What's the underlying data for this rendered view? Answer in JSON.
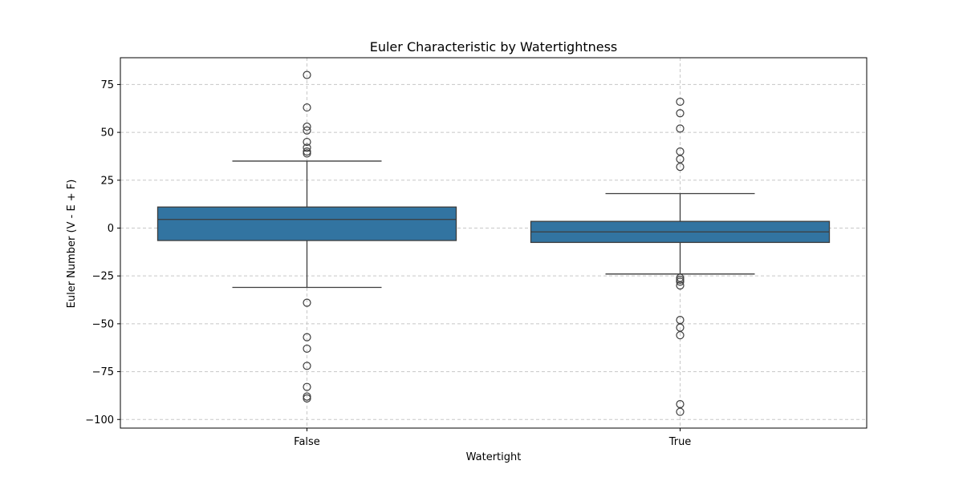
{
  "chart_data": {
    "type": "box",
    "title": "Euler Characteristic by Watertightness",
    "xlabel": "Watertight",
    "ylabel": "Euler Number (V - E + F)",
    "categories": [
      "False",
      "True"
    ],
    "ylim": [
      -104.5,
      89
    ],
    "yticks": [
      75,
      50,
      25,
      0,
      -25,
      -50,
      -75,
      -100
    ],
    "ytick_labels": [
      "75",
      "50",
      "25",
      "0",
      "−25",
      "−50",
      "−75",
      "−100"
    ],
    "grid": true,
    "box_color": "#3274a1",
    "line_color": "#3d3d3d",
    "boxes": [
      {
        "category": "False",
        "whisker_low": -31,
        "q1": -6.5,
        "median": 4.5,
        "q3": 11,
        "whisker_high": 35,
        "outliers": [
          80,
          63,
          53,
          51,
          45,
          42,
          40,
          39,
          -39,
          -57,
          -63,
          -72,
          -83,
          -88,
          -89
        ]
      },
      {
        "category": "True",
        "whisker_low": -24,
        "q1": -7.5,
        "median": -2,
        "q3": 3.5,
        "whisker_high": 18,
        "outliers": [
          66,
          60,
          52,
          40,
          36,
          32,
          -26,
          -27,
          -28,
          -30,
          -48,
          -52,
          -56,
          -92,
          -96
        ]
      }
    ]
  }
}
